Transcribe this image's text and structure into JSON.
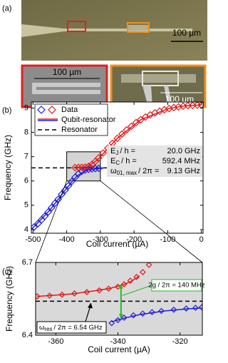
{
  "image_panel": {
    "label": "(a)",
    "main_scale": "100 µm",
    "left_scale": "100 µm",
    "right_scale": "100 µm"
  },
  "chart_data": [
    {
      "type": "scatter",
      "panel_label": "(b)",
      "xlabel": "Coil current (µA)",
      "ylabel": "Frequency (GHz)",
      "xlim": [
        -505,
        5
      ],
      "ylim": [
        3.85,
        9.25
      ],
      "xticks": [
        -500,
        -400,
        -300,
        -200,
        -100,
        0
      ],
      "yticks": [
        4,
        5,
        6,
        7,
        8,
        9
      ],
      "background": "#ffffff",
      "series": [
        {
          "color": "#1f1fd6",
          "x": [
            -497,
            -485,
            -475,
            -465,
            -455,
            -445,
            -435,
            -425,
            -415,
            -405,
            -395,
            -385,
            -375,
            -365,
            -355,
            -345,
            -335,
            -325,
            -315,
            -305
          ],
          "values": [
            4.1,
            4.25,
            4.4,
            4.55,
            4.72,
            4.9,
            5.08,
            5.25,
            5.45,
            5.62,
            5.8,
            5.98,
            6.15,
            6.3,
            6.4,
            6.45,
            6.48,
            6.5,
            6.51,
            6.52
          ]
        },
        {
          "color": "#e01818",
          "x": [
            -375,
            -365,
            -355,
            -345,
            -335,
            -325,
            -315,
            -305,
            -292,
            -278,
            -264,
            -250,
            -236,
            -222,
            -208,
            -194,
            -180,
            -166,
            -152,
            -138,
            -124,
            -110,
            -96,
            -82,
            -68,
            -54,
            -40,
            -26,
            -12,
            0
          ],
          "values": [
            6.55,
            6.555,
            6.56,
            6.57,
            6.6,
            6.68,
            6.8,
            6.95,
            7.15,
            7.35,
            7.55,
            7.75,
            7.93,
            8.1,
            8.25,
            8.4,
            8.52,
            8.63,
            8.72,
            8.8,
            8.87,
            8.93,
            8.98,
            9.02,
            9.05,
            9.08,
            9.1,
            9.11,
            9.12,
            9.13
          ]
        }
      ],
      "fits": [
        {
          "color": "#1f1fd6",
          "x": [
            -505,
            -450,
            -400,
            -370,
            -340,
            -310,
            -290
          ],
          "values": [
            4.0,
            4.8,
            5.7,
            6.2,
            6.45,
            6.51,
            6.53
          ]
        },
        {
          "color": "#e01818",
          "x": [
            -380,
            -340,
            -310,
            -250,
            -180,
            -100,
            -50,
            0
          ],
          "values": [
            6.55,
            6.57,
            6.85,
            7.75,
            8.52,
            8.97,
            9.09,
            9.13
          ]
        }
      ],
      "resonator": {
        "value": 6.54,
        "x": [
          -505,
          -250
        ]
      },
      "zoom_region": {
        "x": [
          -400,
          -300
        ],
        "y": [
          6.0,
          7.2
        ]
      },
      "legend": [
        {
          "label": "Data",
          "colors": [
            "#1f1fd6",
            "#e01818"
          ],
          "style": "diamond"
        },
        {
          "label": "Qubit-resonator",
          "colors": [
            "#e01818",
            "#1f1fd6"
          ],
          "style": "line"
        },
        {
          "label": "Resonator",
          "colors": [
            "#000000"
          ],
          "style": "dashed"
        }
      ],
      "annotations": [
        {
          "symbol": "E",
          "sub": "J",
          "text": "/ h =",
          "value": "20.0  GHz"
        },
        {
          "symbol": "E",
          "sub": "C",
          "text": "/ h =",
          "value": "592.4  MHz"
        },
        {
          "symbol": "ω",
          "sub": "01, max",
          "text": "/ 2π =",
          "value": "9.13  GHz"
        }
      ]
    },
    {
      "type": "scatter",
      "panel_label": "(c)",
      "xlabel": "Coil current (µA)",
      "ylabel": "Frequency (GHz)",
      "xlim": [
        -366.5,
        -312.8
      ],
      "ylim": [
        6.4,
        6.7
      ],
      "xticks": [
        -360,
        -340,
        -320
      ],
      "yticks": [
        6.4,
        6.7
      ],
      "background": "#d9d9d9",
      "series": [
        {
          "color": "#e01818",
          "x": [
            -366,
            -362,
            -358,
            -354,
            -350,
            -346,
            -343,
            -340,
            -338,
            -336,
            -334,
            -332,
            -330
          ],
          "values": [
            6.56,
            6.563,
            6.567,
            6.572,
            6.578,
            6.585,
            6.592,
            6.6,
            6.61,
            6.625,
            6.64,
            6.66,
            6.69
          ]
        },
        {
          "color": "#1f1fd6",
          "x": [
            -342,
            -340,
            -338,
            -335,
            -332,
            -329,
            -326,
            -322,
            -318,
            -315,
            -313
          ],
          "values": [
            6.45,
            6.462,
            6.472,
            6.482,
            6.489,
            6.495,
            6.5,
            6.505,
            6.51,
            6.513,
            6.515
          ]
        }
      ],
      "fits": [
        {
          "color": "#e01818",
          "x": [
            -366,
            -355,
            -348,
            -343,
            -339,
            -336,
            -333
          ],
          "values": [
            6.56,
            6.57,
            6.582,
            6.592,
            6.605,
            6.62,
            6.645
          ]
        },
        {
          "color": "#1f1fd6",
          "x": [
            -342,
            -338,
            -333,
            -325,
            -318,
            -313
          ],
          "values": [
            6.455,
            6.47,
            6.485,
            6.5,
            6.508,
            6.512
          ]
        }
      ],
      "resonator": {
        "value": 6.54,
        "x": [
          -366.5,
          -312.8
        ]
      },
      "gap_arrow": {
        "x": -339,
        "y": [
          6.47,
          6.61
        ],
        "color": "#22bb22",
        "text": "2g / 2π = 140 MHz"
      },
      "res_label": {
        "symbol": "ω",
        "sub": "res",
        "text": "/ 2π = 6.54 GHz"
      }
    }
  ]
}
